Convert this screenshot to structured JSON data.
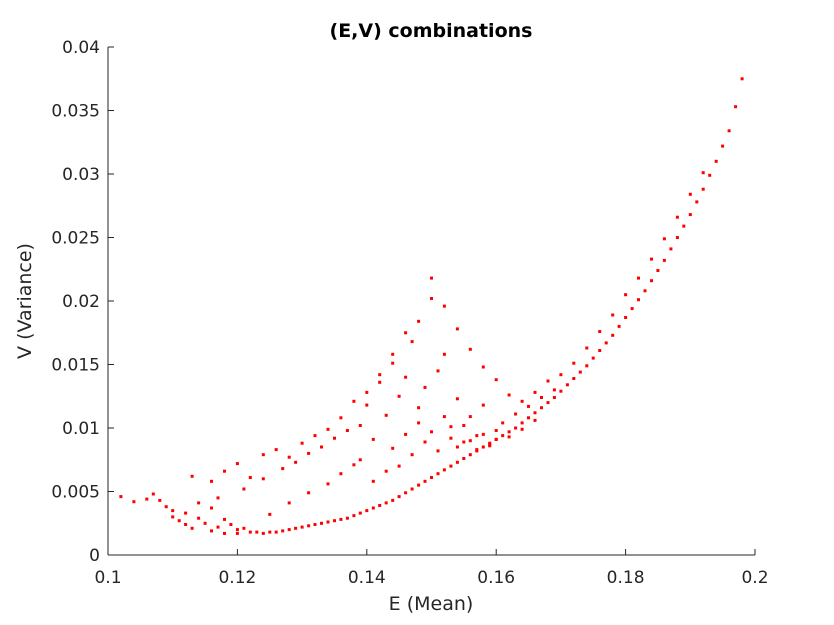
{
  "chart_data": {
    "type": "scatter",
    "title": "(E,V) combinations",
    "xlabel": "E (Mean)",
    "ylabel": "V (Variance)",
    "xlim": [
      0.1,
      0.2
    ],
    "ylim": [
      0,
      0.04
    ],
    "xticks": [
      0.1,
      0.12,
      0.14,
      0.16,
      0.18,
      0.2
    ],
    "xtick_labels": [
      "0.1",
      "0.12",
      "0.14",
      "0.16",
      "0.18",
      "0.2"
    ],
    "yticks": [
      0,
      0.005,
      0.01,
      0.015,
      0.02,
      0.025,
      0.03,
      0.035,
      0.04
    ],
    "ytick_labels": [
      "0",
      "0.005",
      "0.01",
      "0.015",
      "0.02",
      "0.025",
      "0.03",
      "0.035",
      "0.04"
    ],
    "grid": false,
    "legend": "none",
    "marker_color": "#ff0000",
    "series": [
      {
        "x": [
          0.102,
          0.104,
          0.106,
          0.107,
          0.108,
          0.109,
          0.11,
          0.11,
          0.111,
          0.112,
          0.112,
          0.113,
          0.114,
          0.114,
          0.115,
          0.116,
          0.116,
          0.117,
          0.118,
          0.118,
          0.119,
          0.12,
          0.12,
          0.121,
          0.122,
          0.123,
          0.124,
          0.125,
          0.126,
          0.127,
          0.128,
          0.129,
          0.13,
          0.131,
          0.132,
          0.133,
          0.134,
          0.135,
          0.136,
          0.137,
          0.138,
          0.139,
          0.14,
          0.141,
          0.142,
          0.143,
          0.144,
          0.145,
          0.146,
          0.147,
          0.148,
          0.149,
          0.15,
          0.151,
          0.152,
          0.153,
          0.154,
          0.155,
          0.156,
          0.157,
          0.158,
          0.159,
          0.16,
          0.161,
          0.162,
          0.163,
          0.164,
          0.165,
          0.166,
          0.167,
          0.168,
          0.169,
          0.17,
          0.171,
          0.172,
          0.173,
          0.174,
          0.175,
          0.176,
          0.177,
          0.178,
          0.179,
          0.18,
          0.181,
          0.182,
          0.183,
          0.184,
          0.185,
          0.186,
          0.187,
          0.188,
          0.189,
          0.19,
          0.191,
          0.192,
          0.193,
          0.194,
          0.195,
          0.196,
          0.197,
          0.198,
          0.113,
          0.116,
          0.118,
          0.12,
          0.122,
          0.124,
          0.126,
          0.128,
          0.13,
          0.132,
          0.134,
          0.136,
          0.138,
          0.14,
          0.142,
          0.144,
          0.146,
          0.148,
          0.15,
          0.152,
          0.154,
          0.156,
          0.158,
          0.16,
          0.162,
          0.164,
          0.166,
          0.168,
          0.17,
          0.172,
          0.174,
          0.176,
          0.178,
          0.18,
          0.182,
          0.184,
          0.186,
          0.188,
          0.19,
          0.192,
          0.117,
          0.121,
          0.124,
          0.127,
          0.129,
          0.131,
          0.133,
          0.135,
          0.137,
          0.139,
          0.14,
          0.141,
          0.142,
          0.143,
          0.144,
          0.145,
          0.146,
          0.147,
          0.148,
          0.149,
          0.15,
          0.151,
          0.152,
          0.153,
          0.154,
          0.155,
          0.156,
          0.157,
          0.158,
          0.159,
          0.16,
          0.161,
          0.163,
          0.165,
          0.167,
          0.169,
          0.125,
          0.128,
          0.131,
          0.134,
          0.136,
          0.138,
          0.139,
          0.141,
          0.143,
          0.144,
          0.145,
          0.146,
          0.147,
          0.148,
          0.149,
          0.15,
          0.151,
          0.152,
          0.153,
          0.154,
          0.155,
          0.156,
          0.157,
          0.158,
          0.159,
          0.16,
          0.162,
          0.164,
          0.166
        ],
        "y": [
          0.0046,
          0.0042,
          0.0044,
          0.0048,
          0.0043,
          0.0038,
          0.003,
          0.0035,
          0.0027,
          0.0024,
          0.0033,
          0.0021,
          0.0029,
          0.0041,
          0.0025,
          0.0019,
          0.0037,
          0.0022,
          0.0028,
          0.0017,
          0.0024,
          0.002,
          0.0017,
          0.0021,
          0.0018,
          0.0018,
          0.0017,
          0.0018,
          0.0018,
          0.0019,
          0.002,
          0.0021,
          0.0022,
          0.0023,
          0.0024,
          0.0025,
          0.0026,
          0.0027,
          0.0028,
          0.0029,
          0.0031,
          0.0033,
          0.0035,
          0.0037,
          0.0039,
          0.0041,
          0.0043,
          0.0046,
          0.0049,
          0.0052,
          0.0055,
          0.0058,
          0.0061,
          0.0064,
          0.0067,
          0.007,
          0.0073,
          0.0076,
          0.0079,
          0.0082,
          0.0085,
          0.0088,
          0.0091,
          0.0094,
          0.0097,
          0.01,
          0.0104,
          0.0108,
          0.0112,
          0.0116,
          0.012,
          0.0124,
          0.0129,
          0.0134,
          0.0139,
          0.0144,
          0.0149,
          0.0155,
          0.0161,
          0.0167,
          0.0173,
          0.018,
          0.0187,
          0.0194,
          0.0201,
          0.0208,
          0.0216,
          0.0224,
          0.0232,
          0.0241,
          0.025,
          0.0259,
          0.0268,
          0.0278,
          0.0288,
          0.0299,
          0.031,
          0.0322,
          0.0334,
          0.0353,
          0.0375,
          0.0062,
          0.0058,
          0.0066,
          0.0072,
          0.0061,
          0.0079,
          0.0083,
          0.0077,
          0.0088,
          0.0094,
          0.0099,
          0.0108,
          0.0121,
          0.0128,
          0.0142,
          0.0158,
          0.0175,
          0.0184,
          0.0218,
          0.0196,
          0.0178,
          0.0162,
          0.0148,
          0.0138,
          0.0126,
          0.0121,
          0.0128,
          0.0137,
          0.0142,
          0.0151,
          0.0163,
          0.0176,
          0.0189,
          0.0205,
          0.0218,
          0.0233,
          0.0249,
          0.0266,
          0.0284,
          0.0301,
          0.0045,
          0.0052,
          0.006,
          0.0068,
          0.0073,
          0.008,
          0.0085,
          0.0092,
          0.0098,
          0.0102,
          0.0118,
          0.0091,
          0.0136,
          0.011,
          0.0151,
          0.0125,
          0.014,
          0.0168,
          0.0116,
          0.0132,
          0.0202,
          0.0145,
          0.0158,
          0.0101,
          0.0123,
          0.0089,
          0.0109,
          0.0094,
          0.0118,
          0.0086,
          0.0098,
          0.0104,
          0.0111,
          0.0117,
          0.0124,
          0.013,
          0.0032,
          0.0041,
          0.0049,
          0.0056,
          0.0064,
          0.0071,
          0.0075,
          0.0058,
          0.0066,
          0.0084,
          0.007,
          0.0095,
          0.0079,
          0.0104,
          0.0089,
          0.0097,
          0.0082,
          0.0109,
          0.0092,
          0.0085,
          0.0102,
          0.009,
          0.0083,
          0.0095,
          0.0087,
          0.0091,
          0.0093,
          0.0099,
          0.0106
        ]
      }
    ]
  }
}
